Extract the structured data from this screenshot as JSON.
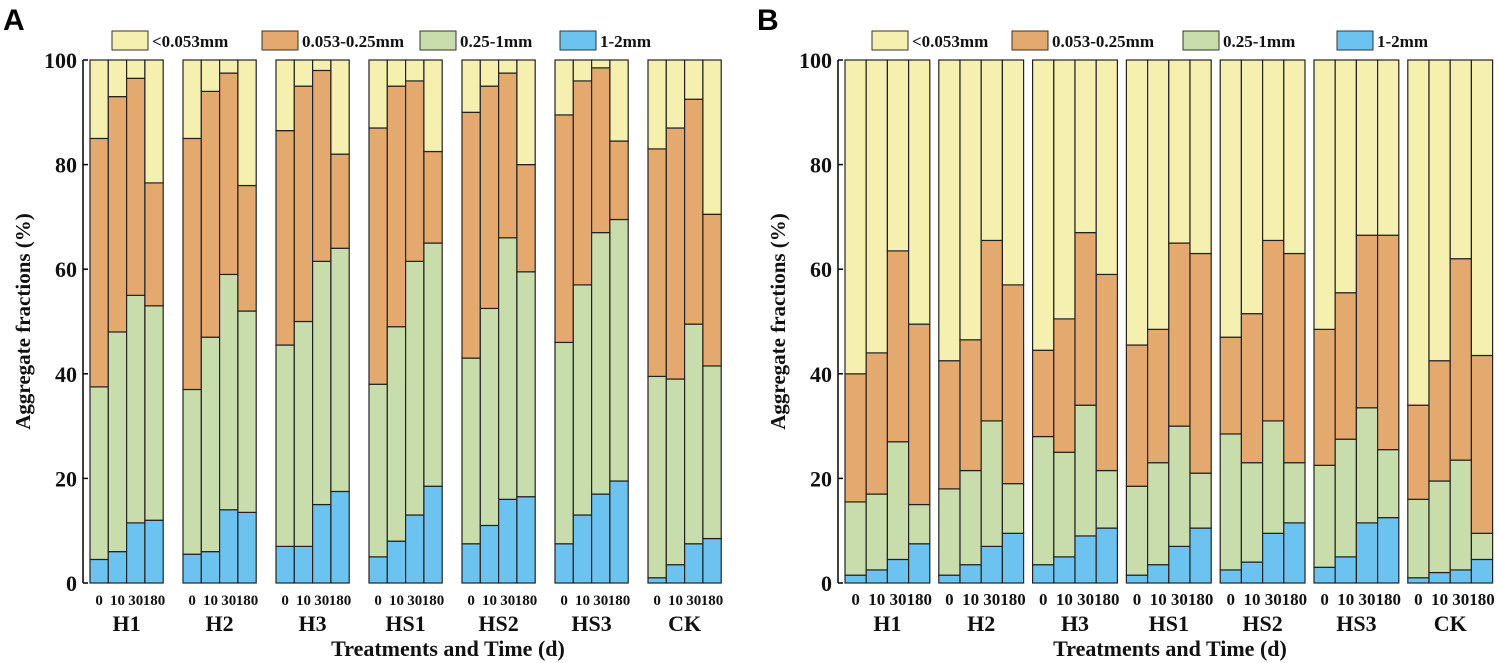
{
  "colors": {
    "<0.053mm": "#f5f0b0",
    "0.053-0.25mm": "#e3a96e",
    "0.25-1mm": "#c9dcab",
    "1-2mm": "#6cc3ef"
  },
  "chart_data": [
    {
      "type": "bar",
      "stacked": true,
      "panel_label": "A",
      "ylabel": "Aggregate fractions (%)",
      "xlabel": "Treatments and Time (d)",
      "ylim": [
        0,
        100
      ],
      "yticks": [
        "0",
        "20",
        "40",
        "60",
        "80",
        "100"
      ],
      "legend": [
        "<0.053mm",
        "0.053-0.25mm",
        "0.25-1mm",
        "1-2mm"
      ],
      "legend_position": "top",
      "times": [
        "0",
        "10",
        "30",
        "180"
      ],
      "groups": [
        "H1",
        "H2",
        "H3",
        "HS1",
        "HS2",
        "HS3",
        "CK"
      ],
      "stack_order_bottom_up": [
        "1-2mm",
        "0.25-1mm",
        "0.053-0.25mm",
        "<0.053mm"
      ],
      "values": [
        [
          [
            4.5,
            33,
            47.5,
            15
          ],
          [
            6,
            42,
            45,
            7
          ],
          [
            11.5,
            43.5,
            41.5,
            3.5
          ],
          [
            12,
            41,
            23.5,
            23.5
          ]
        ],
        [
          [
            5.5,
            31.5,
            48,
            15
          ],
          [
            6,
            41,
            47,
            6
          ],
          [
            14,
            45,
            38.5,
            2.5
          ],
          [
            13.5,
            38.5,
            24,
            24
          ]
        ],
        [
          [
            7,
            38.5,
            41,
            13.5
          ],
          [
            7,
            43,
            45,
            5
          ],
          [
            15,
            46.5,
            36.5,
            2
          ],
          [
            17.5,
            46.5,
            18,
            18
          ]
        ],
        [
          [
            5,
            33,
            49,
            13
          ],
          [
            8,
            41,
            46,
            5
          ],
          [
            13,
            48.5,
            34.5,
            4
          ],
          [
            18.5,
            46.5,
            17.5,
            17.5
          ]
        ],
        [
          [
            7.5,
            35.5,
            47,
            10
          ],
          [
            11,
            41.5,
            42.5,
            5
          ],
          [
            16,
            50,
            31.5,
            2.5
          ],
          [
            16.5,
            43,
            20.5,
            20
          ]
        ],
        [
          [
            7.5,
            38.5,
            43.5,
            10.5
          ],
          [
            13,
            44,
            39,
            4
          ],
          [
            17,
            50,
            31.5,
            1.5
          ],
          [
            19.5,
            50,
            15,
            15.5
          ]
        ],
        [
          [
            1,
            38.5,
            43.5,
            17
          ],
          [
            3.5,
            35.5,
            48,
            13
          ],
          [
            7.5,
            42,
            43,
            7.5
          ],
          [
            8.5,
            33,
            29,
            29.5
          ]
        ]
      ]
    },
    {
      "type": "bar",
      "stacked": true,
      "panel_label": "B",
      "ylabel": "Aggregate fractions (%)",
      "xlabel": "Treatments and Time (d)",
      "ylim": [
        0,
        100
      ],
      "yticks": [
        "0",
        "20",
        "40",
        "60",
        "80",
        "100"
      ],
      "legend": [
        "<0.053mm",
        "0.053-0.25mm",
        "0.25-1mm",
        "1-2mm"
      ],
      "legend_position": "top",
      "times": [
        "0",
        "10",
        "30",
        "180"
      ],
      "groups": [
        "H1",
        "H2",
        "H3",
        "HS1",
        "HS2",
        "HS3",
        "CK"
      ],
      "stack_order_bottom_up": [
        "1-2mm",
        "0.25-1mm",
        "0.053-0.25mm",
        "<0.053mm"
      ],
      "values": [
        [
          [
            1.5,
            14,
            24.5,
            60
          ],
          [
            2.5,
            14.5,
            27,
            56
          ],
          [
            4.5,
            22.5,
            36.5,
            36.5
          ],
          [
            7.5,
            7.5,
            34.5,
            50.5
          ]
        ],
        [
          [
            1.5,
            16.5,
            24.5,
            57.5
          ],
          [
            3.5,
            18,
            25,
            53.5
          ],
          [
            7,
            24,
            34.5,
            34.5
          ],
          [
            9.5,
            9.5,
            38,
            43
          ]
        ],
        [
          [
            3.5,
            24.5,
            16.5,
            55.5
          ],
          [
            5,
            20,
            25.5,
            49.5
          ],
          [
            9,
            25,
            33,
            33
          ],
          [
            10.5,
            11,
            37.5,
            41
          ]
        ],
        [
          [
            1.5,
            17,
            27,
            54.5
          ],
          [
            3.5,
            19.5,
            25.5,
            51.5
          ],
          [
            7,
            23,
            35,
            35
          ],
          [
            10.5,
            10.5,
            42,
            37
          ]
        ],
        [
          [
            2.5,
            26,
            18.5,
            53
          ],
          [
            4,
            19,
            28.5,
            48.5
          ],
          [
            9.5,
            21.5,
            34.5,
            34.5
          ],
          [
            11.5,
            11.5,
            40,
            37
          ]
        ],
        [
          [
            3,
            19.5,
            26,
            51.5
          ],
          [
            5,
            22.5,
            28,
            44.5
          ],
          [
            11.5,
            22,
            33,
            33.5
          ],
          [
            12.5,
            13,
            41,
            33.5
          ]
        ],
        [
          [
            1,
            15,
            18,
            66
          ],
          [
            2,
            17.5,
            23,
            57.5
          ],
          [
            2.5,
            21,
            38.5,
            38
          ],
          [
            4.5,
            5,
            34,
            56.5
          ]
        ]
      ]
    }
  ]
}
